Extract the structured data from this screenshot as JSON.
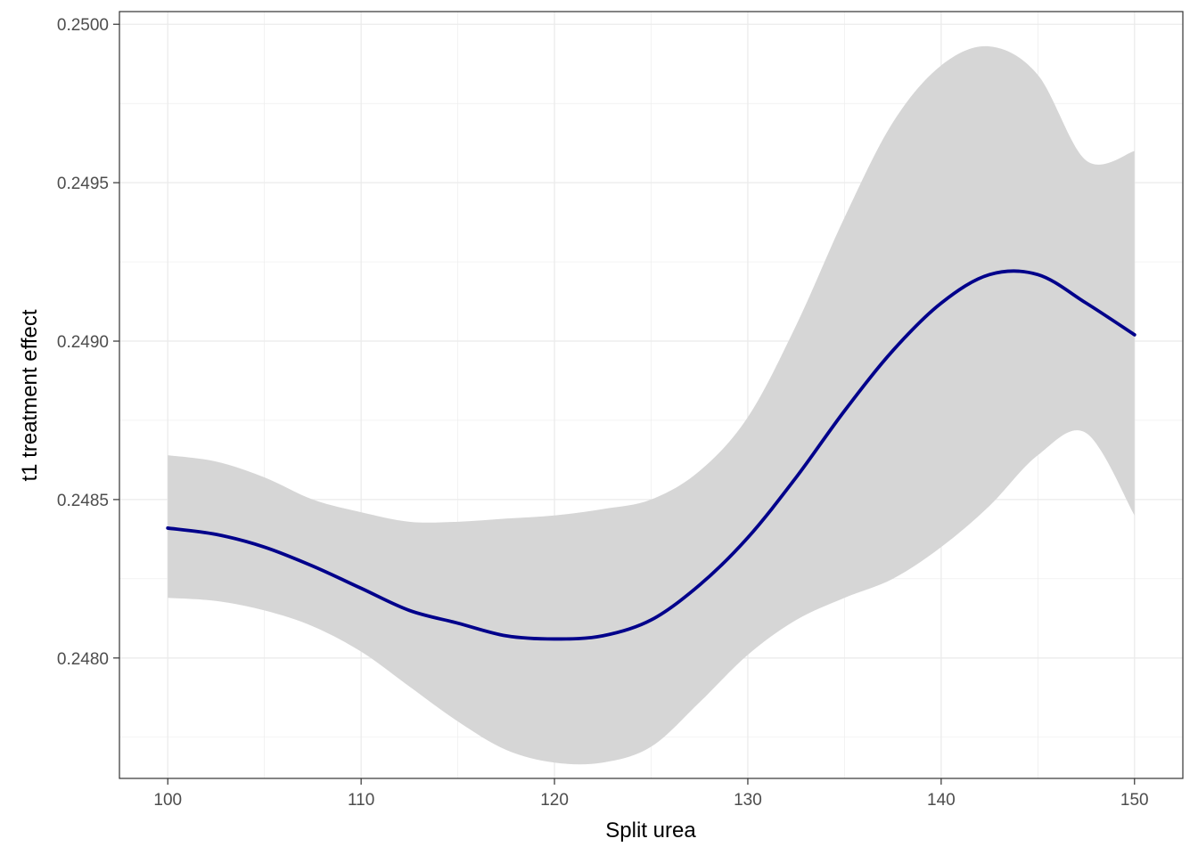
{
  "chart_data": {
    "type": "line",
    "title": "",
    "xlabel": "Split urea",
    "ylabel": "t1 treatment effect",
    "xlim": [
      97.5,
      152.5
    ],
    "ylim": [
      0.24762,
      0.25004
    ],
    "x_ticks": [
      100,
      110,
      120,
      130,
      140,
      150
    ],
    "x_tick_labels": [
      "100",
      "110",
      "120",
      "130",
      "140",
      "150"
    ],
    "y_ticks": [
      0.248,
      0.2485,
      0.249,
      0.2495,
      0.25
    ],
    "y_tick_labels": [
      "0.2480",
      "0.2485",
      "0.2490",
      "0.2495",
      "0.2500"
    ],
    "grid": true,
    "legend": "none",
    "colors": {
      "line": "#00008b",
      "band": "#d6d6d6",
      "grid": "#ebebeb",
      "panel_border": "#333333"
    },
    "series": [
      {
        "x": [
          100,
          102.5,
          105,
          107.5,
          110,
          112.5,
          115,
          117.5,
          120,
          122.5,
          125,
          127.5,
          130,
          132.5,
          135,
          137.5,
          140,
          142.5,
          145,
          147.5,
          150
        ],
        "y": [
          0.24841,
          0.24839,
          0.24835,
          0.24829,
          0.24822,
          0.24815,
          0.24811,
          0.24807,
          0.24806,
          0.24807,
          0.24812,
          0.24823,
          0.24838,
          0.24857,
          0.24878,
          0.24897,
          0.24912,
          0.24921,
          0.24921,
          0.24912,
          0.24902
        ],
        "ymin": [
          0.24819,
          0.24818,
          0.24815,
          0.2481,
          0.24802,
          0.24791,
          0.2478,
          0.24771,
          0.24767,
          0.24767,
          0.24772,
          0.24786,
          0.24801,
          0.24812,
          0.24819,
          0.24825,
          0.24835,
          0.24848,
          0.24864,
          0.24871,
          0.24845
        ],
        "ymax": [
          0.24864,
          0.24862,
          0.24857,
          0.2485,
          0.24846,
          0.24843,
          0.24843,
          0.24844,
          0.24845,
          0.24847,
          0.2485,
          0.24859,
          0.24876,
          0.24905,
          0.24939,
          0.24969,
          0.24987,
          0.24993,
          0.24984,
          0.24957,
          0.2496
        ]
      }
    ]
  }
}
